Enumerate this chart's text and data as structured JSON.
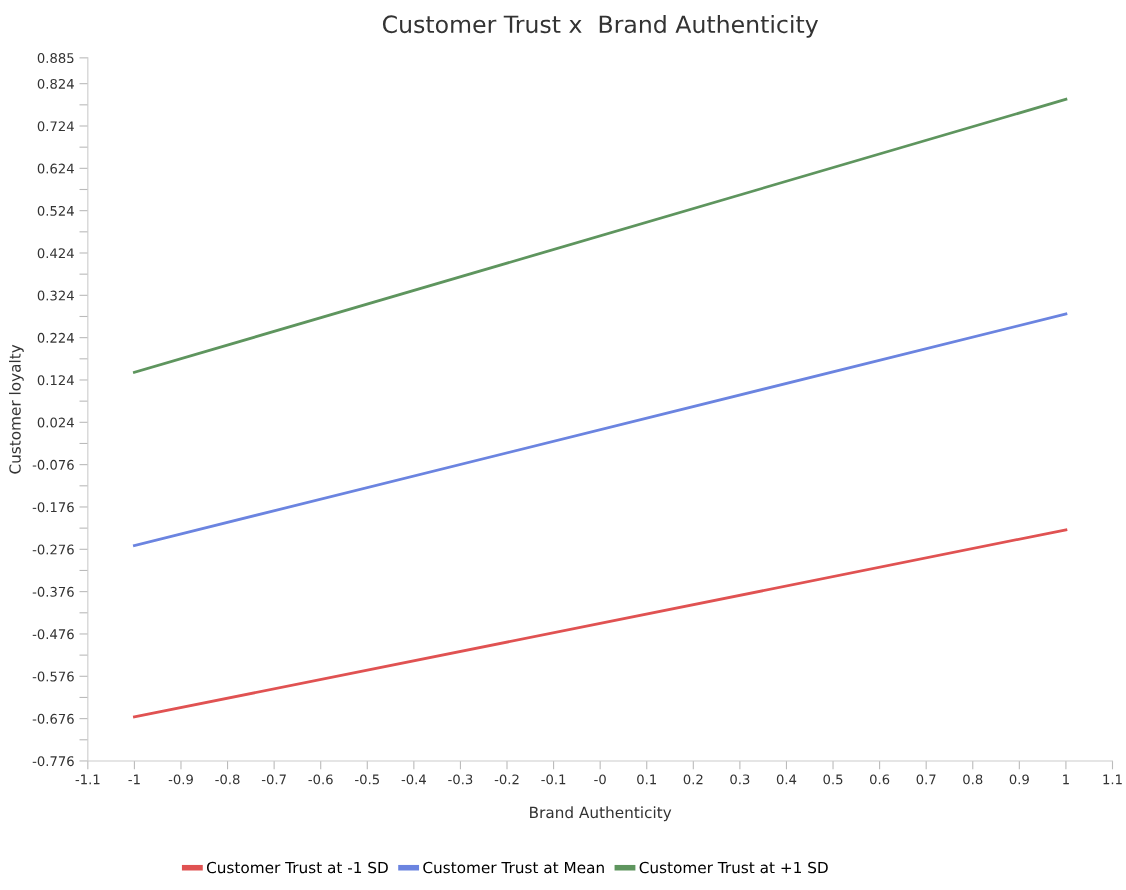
{
  "chart_data": {
    "type": "line",
    "title": "Customer Trust x  Brand Authenticity",
    "xlabel": "Brand Authenticity",
    "ylabel": "Customer loyalty",
    "x": [
      -1,
      1
    ],
    "series": [
      {
        "name": "Customer Trust at -1 SD",
        "color": "#e05252",
        "values": [
          -0.672,
          -0.23
        ]
      },
      {
        "name": "Customer Trust at Mean",
        "color": "#6b84e0",
        "values": [
          -0.267,
          0.28
        ]
      },
      {
        "name": "Customer Trust at +1 SD",
        "color": "#5e955e",
        "values": [
          0.142,
          0.787
        ]
      }
    ],
    "xlim": [
      -1.1,
      1.1
    ],
    "xticks": [
      -1.1,
      -1,
      -0.9,
      -0.8,
      -0.7,
      -0.6,
      -0.5,
      -0.4,
      -0.3,
      -0.2,
      -0.1,
      {
        "value": 0,
        "label": "-0"
      },
      0.1,
      0.2,
      0.3,
      0.4,
      0.5,
      0.6,
      0.7,
      0.8,
      0.9,
      1,
      1.1
    ],
    "ylim": [
      -0.776,
      0.885
    ],
    "yticks": [
      -0.776,
      {
        "value": -0.726,
        "label": null
      },
      -0.676,
      {
        "value": -0.626,
        "label": null
      },
      -0.576,
      {
        "value": -0.526,
        "label": null
      },
      -0.476,
      {
        "value": -0.426,
        "label": null
      },
      -0.376,
      {
        "value": -0.326,
        "label": null
      },
      -0.276,
      {
        "value": -0.226,
        "label": null
      },
      -0.176,
      {
        "value": -0.126,
        "label": null
      },
      -0.076,
      {
        "value": -0.026,
        "label": null
      },
      0.024,
      {
        "value": 0.074,
        "label": null
      },
      0.124,
      {
        "value": 0.174,
        "label": null
      },
      0.224,
      {
        "value": 0.274,
        "label": null
      },
      0.324,
      {
        "value": 0.374,
        "label": null
      },
      0.424,
      {
        "value": 0.474,
        "label": null
      },
      0.524,
      {
        "value": 0.574,
        "label": null
      },
      0.624,
      {
        "value": 0.674,
        "label": null
      },
      0.724,
      {
        "value": 0.774,
        "label": null
      },
      0.824,
      0.885
    ],
    "grid": false,
    "legend": "bottom",
    "marker": "none",
    "line_style": "solid"
  }
}
